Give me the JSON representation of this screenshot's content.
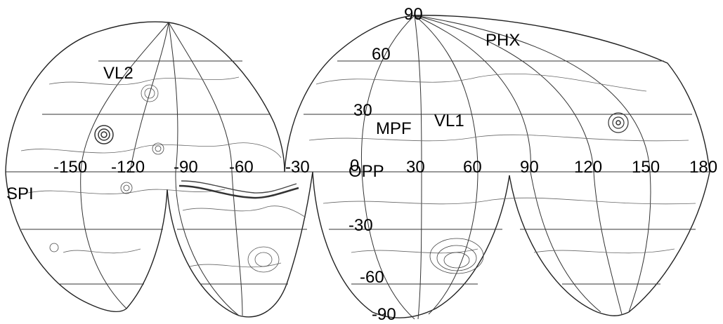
{
  "map": {
    "projection": "interrupted",
    "longitude_labels": [
      "-150",
      "-120",
      "-90",
      "-60",
      "-30",
      "0",
      "30",
      "60",
      "90",
      "120",
      "150",
      "180"
    ],
    "latitude_labels": [
      "90",
      "60",
      "30",
      "-30",
      "-60",
      "-90"
    ],
    "sites": [
      "VL2",
      "PHX",
      "MPF",
      "VL1",
      "OPP",
      "SPI"
    ],
    "line_color": "#000000",
    "contour_color": "#555555",
    "background": "#ffffff"
  }
}
